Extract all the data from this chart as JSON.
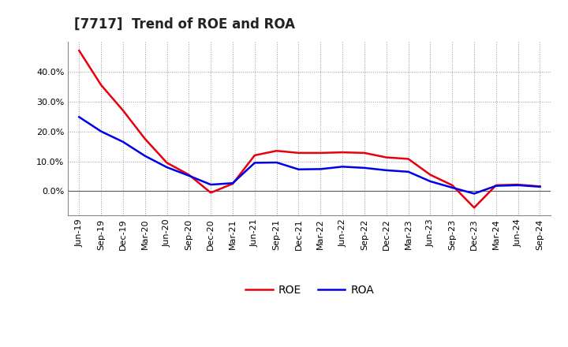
{
  "title": "[7717]  Trend of ROE and ROA",
  "labels": [
    "Jun-19",
    "Sep-19",
    "Dec-19",
    "Mar-20",
    "Jun-20",
    "Sep-20",
    "Dec-20",
    "Mar-21",
    "Jun-21",
    "Sep-21",
    "Dec-21",
    "Mar-22",
    "Jun-22",
    "Sep-22",
    "Dec-22",
    "Mar-23",
    "Jun-23",
    "Sep-23",
    "Dec-23",
    "Mar-24",
    "Jun-24",
    "Sep-24"
  ],
  "roe_values": [
    0.47,
    0.355,
    0.27,
    0.175,
    0.095,
    0.055,
    -0.005,
    0.025,
    0.12,
    0.135,
    0.128,
    0.128,
    0.13,
    0.128,
    0.113,
    0.108,
    0.055,
    0.02,
    -0.055,
    0.02,
    0.022,
    0.016
  ],
  "roa_values": [
    0.248,
    0.2,
    0.165,
    0.118,
    0.08,
    0.052,
    0.022,
    0.027,
    0.095,
    0.096,
    0.073,
    0.074,
    0.082,
    0.078,
    0.07,
    0.065,
    0.033,
    0.012,
    -0.008,
    0.018,
    0.02,
    0.015
  ],
  "roe_color": "#e8000d",
  "roa_color": "#0000e8",
  "ylim_min": -0.08,
  "ylim_max": 0.5,
  "yticks": [
    0.0,
    0.1,
    0.2,
    0.3,
    0.4
  ],
  "background_color": "#ffffff",
  "grid_color": "#999999",
  "line_width": 1.8,
  "legend_labels": [
    "ROE",
    "ROA"
  ],
  "title_fontsize": 12,
  "tick_fontsize": 8,
  "legend_fontsize": 10
}
